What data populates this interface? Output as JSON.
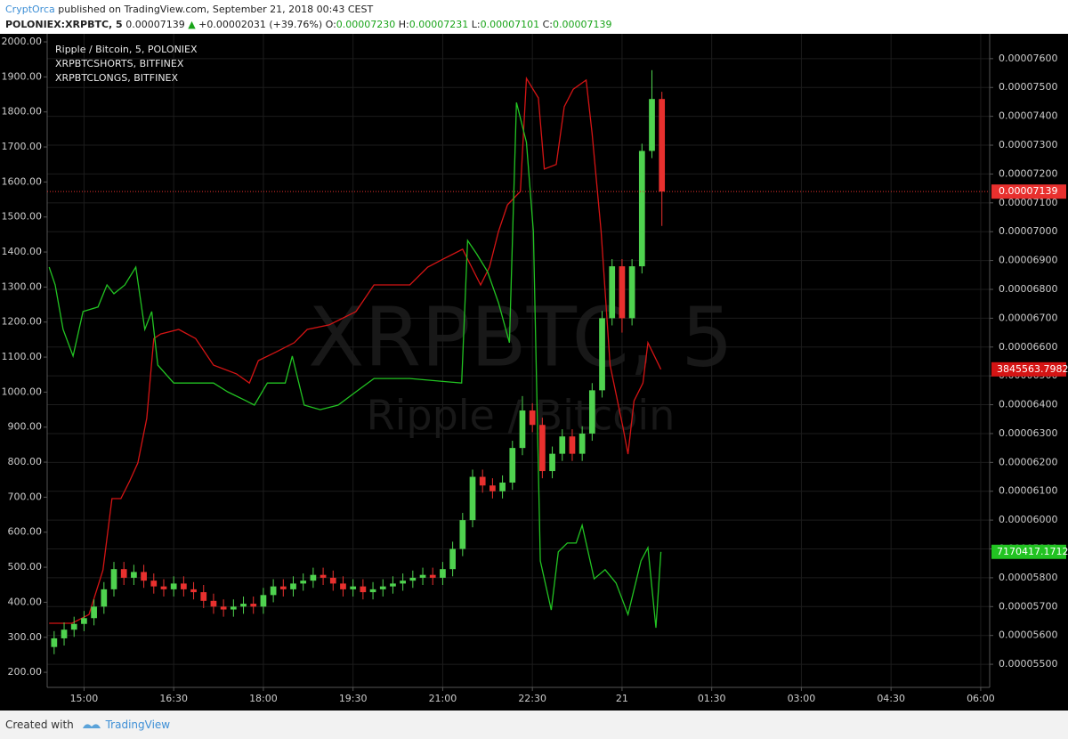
{
  "header": {
    "author": "CryptOrca",
    "published": " published on TradingView.com, September 21, 2018 00:43 CEST",
    "symbol": "POLONIEX:XRPBTC, 5",
    "last": "0.00007139",
    "arrow": "▲",
    "change": "+0.00002031 (+39.76%)",
    "ohlc": [
      {
        "key": "O:",
        "value": "0.00007230"
      },
      {
        "key": "H:",
        "value": "0.00007231"
      },
      {
        "key": "L:",
        "value": "0.00007101"
      },
      {
        "key": "C:",
        "value": "0.00007139"
      }
    ]
  },
  "footer": {
    "created": "Created with",
    "brand": "TradingView"
  },
  "chart_data": {
    "type": "candlestick",
    "grid": true,
    "watermark": [
      "XRPBTC, 5",
      "Ripple / Bitcoin"
    ],
    "xlim": [
      863,
      1809
    ],
    "xticks": [
      {
        "value": 900,
        "label": "15:00"
      },
      {
        "value": 990,
        "label": "16:30"
      },
      {
        "value": 1080,
        "label": "18:00"
      },
      {
        "value": 1170,
        "label": "19:30"
      },
      {
        "value": 1260,
        "label": "21:00"
      },
      {
        "value": 1350,
        "label": "22:30"
      },
      {
        "value": 1440,
        "label": "21"
      },
      {
        "value": 1530,
        "label": "01:30"
      },
      {
        "value": 1620,
        "label": "03:00"
      },
      {
        "value": 1710,
        "label": "04:30"
      },
      {
        "value": 1800,
        "label": "06:00"
      }
    ],
    "ylim": [
      157,
      2023
    ],
    "yticks": [
      {
        "value": 200,
        "label": "200.00"
      },
      {
        "value": 300,
        "label": "300.00"
      },
      {
        "value": 400,
        "label": "400.00"
      },
      {
        "value": 500,
        "label": "500.00"
      },
      {
        "value": 600,
        "label": "600.00"
      },
      {
        "value": 700,
        "label": "700.00"
      },
      {
        "value": 800,
        "label": "800.00"
      },
      {
        "value": 900,
        "label": "900.00"
      },
      {
        "value": 1000,
        "label": "1000.00"
      },
      {
        "value": 1100,
        "label": "1100.00"
      },
      {
        "value": 1200,
        "label": "1200.00"
      },
      {
        "value": 1300,
        "label": "1300.00"
      },
      {
        "value": 1400,
        "label": "1400.00"
      },
      {
        "value": 1500,
        "label": "1500.00"
      },
      {
        "value": 1600,
        "label": "1600.00"
      },
      {
        "value": 1700,
        "label": "1700.00"
      },
      {
        "value": 1800,
        "label": "1800.00"
      },
      {
        "value": 1900,
        "label": "1900.00"
      },
      {
        "value": 2000,
        "label": "2000.00"
      }
    ],
    "y2lim": [
      5.42e-05,
      7.686e-05
    ],
    "y2ticks": [
      {
        "value": 5.5e-05,
        "label": "0.00005500"
      },
      {
        "value": 5.6e-05,
        "label": "0.00005600"
      },
      {
        "value": 5.7e-05,
        "label": "0.00005700"
      },
      {
        "value": 5.8e-05,
        "label": "0.00005800"
      },
      {
        "value": 5.9e-05,
        "label": "0.00005900"
      },
      {
        "value": 6e-05,
        "label": "0.00006000"
      },
      {
        "value": 6.1e-05,
        "label": "0.00006100"
      },
      {
        "value": 6.2e-05,
        "label": "0.00006200"
      },
      {
        "value": 6.3e-05,
        "label": "0.00006300"
      },
      {
        "value": 6.4e-05,
        "label": "0.00006400"
      },
      {
        "value": 6.5e-05,
        "label": "0.00006500"
      },
      {
        "value": 6.6e-05,
        "label": "0.00006600"
      },
      {
        "value": 6.7e-05,
        "label": "0.00006700"
      },
      {
        "value": 6.8e-05,
        "label": "0.00006800"
      },
      {
        "value": 6.9e-05,
        "label": "0.00006900"
      },
      {
        "value": 7e-05,
        "label": "0.00007000"
      },
      {
        "value": 7.1e-05,
        "label": "0.00007100"
      },
      {
        "value": 7.2e-05,
        "label": "0.00007200"
      },
      {
        "value": 7.3e-05,
        "label": "0.00007300"
      },
      {
        "value": 7.4e-05,
        "label": "0.00007400"
      },
      {
        "value": 7.5e-05,
        "label": "0.00007500"
      },
      {
        "value": 7.6e-05,
        "label": "0.00007600"
      }
    ],
    "price_line": {
      "value": 7.139e-05,
      "label": "0.00007139",
      "color": "#e8302e"
    },
    "candles": {
      "name": "Ripple / Bitcoin, 5, POLONIEX",
      "axis": "y2",
      "up_color": "#4fd24f",
      "down_color": "#e8302e",
      "x": [
        870,
        880,
        890,
        900,
        910,
        920,
        930,
        940,
        950,
        960,
        970,
        980,
        990,
        1000,
        1010,
        1020,
        1030,
        1040,
        1050,
        1060,
        1070,
        1080,
        1090,
        1100,
        1110,
        1120,
        1130,
        1140,
        1150,
        1160,
        1170,
        1180,
        1190,
        1200,
        1210,
        1220,
        1230,
        1240,
        1250,
        1260,
        1270,
        1280,
        1290,
        1300,
        1310,
        1320,
        1330,
        1340,
        1350,
        1360,
        1370,
        1380,
        1390,
        1400,
        1410,
        1420,
        1430,
        1440,
        1450,
        1460,
        1470,
        1480
      ],
      "open": [
        5.56e-05,
        5.59e-05,
        5.62e-05,
        5.64e-05,
        5.66e-05,
        5.7e-05,
        5.76e-05,
        5.83e-05,
        5.8e-05,
        5.82e-05,
        5.79e-05,
        5.77e-05,
        5.76e-05,
        5.78e-05,
        5.76e-05,
        5.75e-05,
        5.72e-05,
        5.7e-05,
        5.69e-05,
        5.7e-05,
        5.71e-05,
        5.7e-05,
        5.74e-05,
        5.77e-05,
        5.76e-05,
        5.78e-05,
        5.79e-05,
        5.81e-05,
        5.8e-05,
        5.78e-05,
        5.76e-05,
        5.77e-05,
        5.75e-05,
        5.76e-05,
        5.77e-05,
        5.78e-05,
        5.79e-05,
        5.8e-05,
        5.81e-05,
        5.8e-05,
        5.83e-05,
        5.9e-05,
        6e-05,
        6.15e-05,
        6.12e-05,
        6.1e-05,
        6.13e-05,
        6.25e-05,
        6.38e-05,
        6.33e-05,
        6.17e-05,
        6.23e-05,
        6.29e-05,
        6.23e-05,
        6.3e-05,
        6.45e-05,
        6.7e-05,
        6.88e-05,
        6.7e-05,
        6.88e-05,
        7.28e-05,
        7.46e-05
      ],
      "high": [
        5.615e-05,
        5.645e-05,
        5.665e-05,
        5.685e-05,
        5.725e-05,
        5.785e-05,
        5.855e-05,
        5.855e-05,
        5.845e-05,
        5.845e-05,
        5.815e-05,
        5.795e-05,
        5.805e-05,
        5.805e-05,
        5.785e-05,
        5.775e-05,
        5.745e-05,
        5.725e-05,
        5.725e-05,
        5.735e-05,
        5.735e-05,
        5.765e-05,
        5.795e-05,
        5.795e-05,
        5.805e-05,
        5.815e-05,
        5.835e-05,
        5.835e-05,
        5.825e-05,
        5.805e-05,
        5.795e-05,
        5.795e-05,
        5.785e-05,
        5.795e-05,
        5.805e-05,
        5.815e-05,
        5.825e-05,
        5.835e-05,
        5.835e-05,
        5.855e-05,
        5.925e-05,
        6.025e-05,
        6.175e-05,
        6.175e-05,
        6.145e-05,
        6.155e-05,
        6.275e-05,
        6.43e-05,
        6.405e-05,
        6.355e-05,
        6.255e-05,
        6.315e-05,
        6.315e-05,
        6.325e-05,
        6.475e-05,
        6.725e-05,
        6.905e-05,
        6.905e-05,
        6.905e-05,
        7.305e-05,
        7.56e-05,
        7.485e-05
      ],
      "low": [
        5.535e-05,
        5.565e-05,
        5.595e-05,
        5.615e-05,
        5.635e-05,
        5.675e-05,
        5.735e-05,
        5.775e-05,
        5.775e-05,
        5.765e-05,
        5.745e-05,
        5.735e-05,
        5.735e-05,
        5.735e-05,
        5.725e-05,
        5.695e-05,
        5.675e-05,
        5.665e-05,
        5.665e-05,
        5.675e-05,
        5.675e-05,
        5.675e-05,
        5.715e-05,
        5.735e-05,
        5.735e-05,
        5.755e-05,
        5.765e-05,
        5.775e-05,
        5.755e-05,
        5.735e-05,
        5.735e-05,
        5.725e-05,
        5.725e-05,
        5.735e-05,
        5.745e-05,
        5.755e-05,
        5.765e-05,
        5.775e-05,
        5.775e-05,
        5.775e-05,
        5.805e-05,
        5.875e-05,
        5.975e-05,
        6.095e-05,
        6.075e-05,
        6.075e-05,
        6.105e-05,
        6.225e-05,
        6.305e-05,
        6.145e-05,
        6.145e-05,
        6.205e-05,
        6.205e-05,
        6.205e-05,
        6.275e-05,
        6.425e-05,
        6.675e-05,
        6.65e-05,
        6.675e-05,
        6.855e-05,
        7.255e-05,
        7.02e-05
      ],
      "close": [
        5.59e-05,
        5.62e-05,
        5.64e-05,
        5.66e-05,
        5.7e-05,
        5.76e-05,
        5.83e-05,
        5.8e-05,
        5.82e-05,
        5.79e-05,
        5.77e-05,
        5.76e-05,
        5.78e-05,
        5.76e-05,
        5.75e-05,
        5.72e-05,
        5.7e-05,
        5.69e-05,
        5.7e-05,
        5.71e-05,
        5.7e-05,
        5.74e-05,
        5.77e-05,
        5.76e-05,
        5.78e-05,
        5.79e-05,
        5.81e-05,
        5.8e-05,
        5.78e-05,
        5.76e-05,
        5.77e-05,
        5.75e-05,
        5.76e-05,
        5.77e-05,
        5.78e-05,
        5.79e-05,
        5.8e-05,
        5.81e-05,
        5.8e-05,
        5.83e-05,
        5.9e-05,
        6e-05,
        6.15e-05,
        6.12e-05,
        6.1e-05,
        6.13e-05,
        6.25e-05,
        6.38e-05,
        6.33e-05,
        6.17e-05,
        6.23e-05,
        6.29e-05,
        6.23e-05,
        6.3e-05,
        6.45e-05,
        6.7e-05,
        6.88e-05,
        6.7e-05,
        6.88e-05,
        7.28e-05,
        7.46e-05,
        7.139e-05
      ]
    },
    "series": [
      {
        "name": "XRPBTCSHORTS, BITFINEX",
        "type": "line",
        "axis": "y",
        "color": "#d41414",
        "last_label": "3845563.7982",
        "x": [
          865,
          888,
          905,
          919,
          928,
          937,
          946,
          954,
          963,
          970,
          977,
          995,
          1012,
          1030,
          1053,
          1066,
          1075,
          1093,
          1111,
          1124,
          1146,
          1173,
          1191,
          1209,
          1227,
          1245,
          1262,
          1280,
          1289,
          1298,
          1307,
          1316,
          1325,
          1338,
          1344,
          1356,
          1362,
          1374,
          1382,
          1391,
          1404,
          1410,
          1419,
          1428,
          1441,
          1446,
          1452,
          1461,
          1466,
          1479
        ],
        "values": [
          340,
          340,
          365,
          492,
          696,
          696,
          747,
          798,
          925,
          1153,
          1166,
          1179,
          1153,
          1077,
          1052,
          1026,
          1090,
          1115,
          1141,
          1179,
          1192,
          1230,
          1306,
          1306,
          1306,
          1357,
          1382,
          1408,
          1357,
          1306,
          1357,
          1459,
          1535,
          1573,
          1896,
          1840,
          1637,
          1650,
          1815,
          1865,
          1891,
          1738,
          1459,
          1077,
          899,
          823,
          975,
          1026,
          1141,
          1065
        ]
      },
      {
        "name": "XRPBTCLONGS, BITFINEX",
        "type": "line",
        "axis": "y",
        "color": "#22c322",
        "last_label": "7170417.1712",
        "x": [
          865,
          871,
          879,
          889,
          899,
          914,
          923,
          930,
          941,
          952,
          961,
          968,
          974,
          990,
          1030,
          1044,
          1062,
          1071,
          1084,
          1102,
          1109,
          1121,
          1137,
          1155,
          1173,
          1191,
          1227,
          1279,
          1285,
          1294,
          1305,
          1316,
          1327,
          1334,
          1344,
          1351,
          1358,
          1369,
          1376,
          1385,
          1394,
          1400,
          1412,
          1423,
          1434,
          1446,
          1459,
          1466,
          1474,
          1479
        ],
        "values": [
          1357,
          1306,
          1179,
          1103,
          1230,
          1243,
          1306,
          1281,
          1306,
          1357,
          1179,
          1230,
          1077,
          1026,
          1026,
          1001,
          976,
          963,
          1026,
          1026,
          1103,
          963,
          950,
          963,
          1001,
          1039,
          1039,
          1026,
          1433,
          1395,
          1344,
          1255,
          1141,
          1827,
          1713,
          1459,
          518,
          378,
          544,
          569,
          569,
          620,
          467,
          493,
          455,
          365,
          518,
          556,
          327,
          544
        ]
      }
    ]
  }
}
